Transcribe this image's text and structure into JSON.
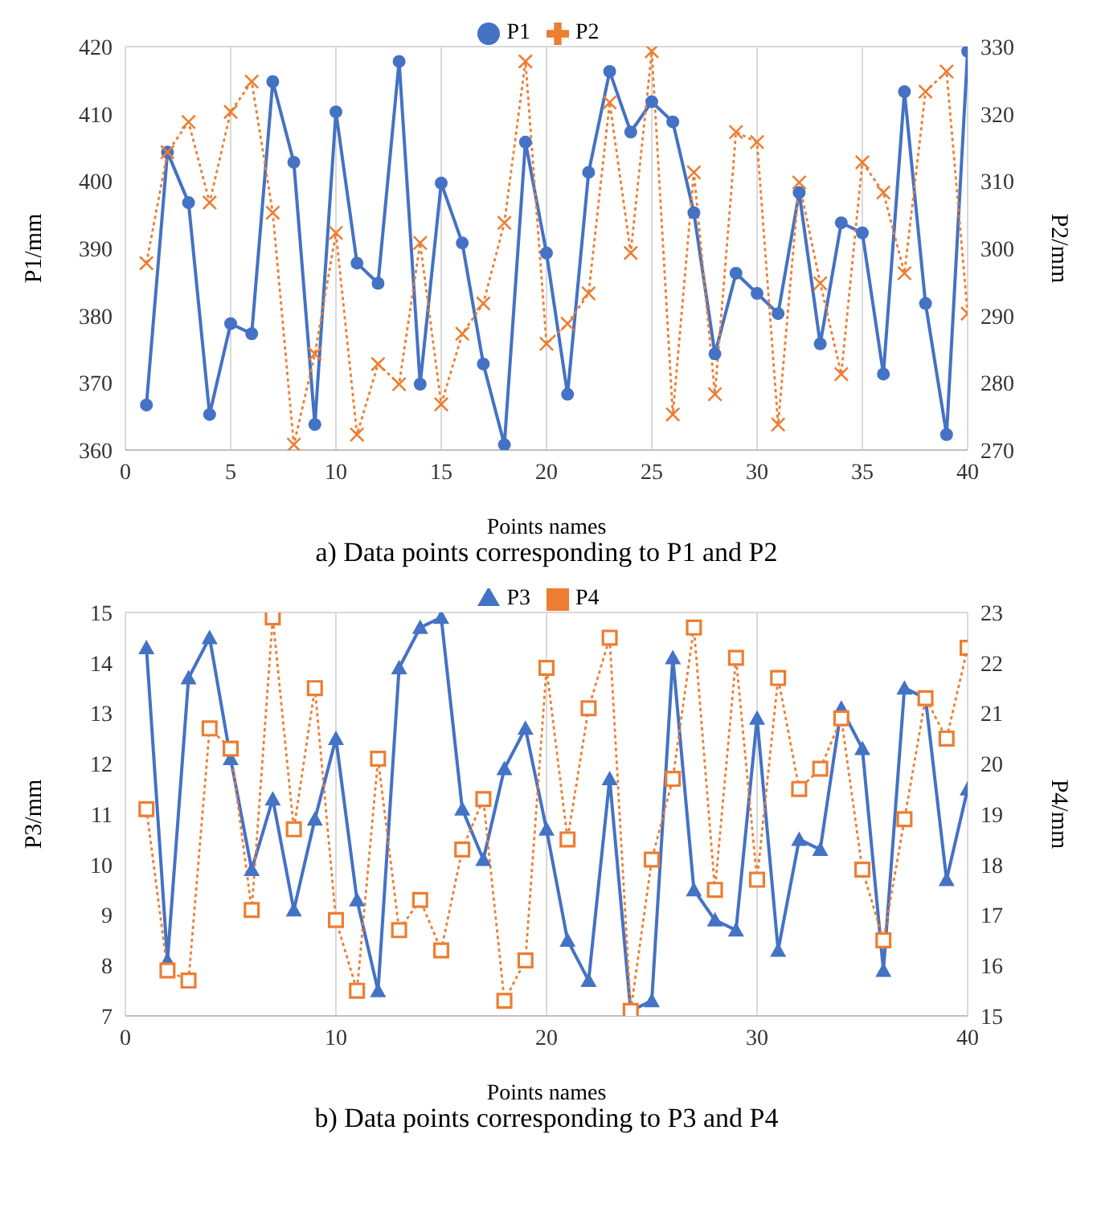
{
  "chart_data": [
    {
      "type": "line",
      "title": "a) Data points corresponding to P1 and P2",
      "xlabel": "Points names",
      "ylabel": "P1/mm",
      "y2label": "P2/mm",
      "x": [
        1,
        2,
        3,
        4,
        5,
        6,
        7,
        8,
        9,
        10,
        11,
        12,
        13,
        14,
        15,
        16,
        17,
        18,
        19,
        20,
        21,
        22,
        23,
        24,
        25,
        26,
        27,
        28,
        29,
        30,
        31,
        32,
        33,
        34,
        35,
        36,
        37,
        38,
        39,
        40
      ],
      "series": [
        {
          "name": "P1",
          "color": "#4472c4",
          "marker": "circle",
          "line_style": "solid",
          "values": [
            366.7,
            404.3,
            396.8,
            365.3,
            378.8,
            377.3,
            414.8,
            402.8,
            363.8,
            410.3,
            387.8,
            384.8,
            417.8,
            369.8,
            399.7,
            390.8,
            372.8,
            360.8,
            405.8,
            389.3,
            368.3,
            401.3,
            416.3,
            407.3,
            411.8,
            408.8,
            395.3,
            374.3,
            386.3,
            383.3,
            380.3,
            398.3,
            375.8,
            393.8,
            392.3,
            371.3,
            413.3,
            381.8,
            362.3,
            419.3
          ]
        },
        {
          "name": "P2",
          "color": "#ed7d31",
          "marker": "cross",
          "line_style": "dotted",
          "axis": "y2",
          "values": [
            297.8,
            314.3,
            318.8,
            306.8,
            320.3,
            324.8,
            305.3,
            270.8,
            284.3,
            302.3,
            272.3,
            282.8,
            279.8,
            300.8,
            276.8,
            287.3,
            291.8,
            303.8,
            327.8,
            285.8,
            288.8,
            293.3,
            321.7,
            299.3,
            329.3,
            275.3,
            311.3,
            278.3,
            317.3,
            315.8,
            273.8,
            309.8,
            294.8,
            281.3,
            312.8,
            308.3,
            296.3,
            323.3,
            326.3,
            290.3
          ]
        }
      ],
      "xlim": [
        0,
        40
      ],
      "xticks": [
        0,
        5,
        10,
        15,
        20,
        25,
        30,
        35,
        40
      ],
      "ylim": [
        360,
        420
      ],
      "yticks": [
        360,
        370,
        380,
        390,
        400,
        410,
        420
      ],
      "y2lim": [
        270,
        330
      ],
      "y2ticks": [
        270,
        280,
        290,
        300,
        310,
        320,
        330
      ],
      "grid": true,
      "legend": "top"
    },
    {
      "type": "line",
      "title": "b) Data points corresponding to P3 and P4",
      "xlabel": "Points names",
      "ylabel": "P3/mm",
      "y2label": "P4/mm",
      "x": [
        1,
        2,
        3,
        4,
        5,
        6,
        7,
        8,
        9,
        10,
        11,
        12,
        13,
        14,
        15,
        16,
        17,
        18,
        19,
        20,
        21,
        22,
        23,
        24,
        25,
        26,
        27,
        28,
        29,
        30,
        31,
        32,
        33,
        34,
        35,
        36,
        37,
        38,
        39,
        40
      ],
      "series": [
        {
          "name": "P3",
          "color": "#4472c4",
          "marker": "triangle",
          "line_style": "solid",
          "values": [
            14.3,
            8.1,
            13.7,
            14.5,
            12.1,
            9.9,
            11.3,
            9.1,
            10.9,
            12.5,
            9.3,
            7.5,
            13.9,
            14.7,
            14.9,
            11.1,
            10.1,
            11.9,
            12.7,
            10.7,
            8.5,
            7.7,
            11.7,
            7.1,
            7.3,
            14.1,
            9.5,
            8.9,
            8.7,
            12.9,
            8.3,
            10.5,
            10.3,
            13.1,
            12.3,
            7.9,
            13.5,
            13.3,
            9.7,
            11.5
          ]
        },
        {
          "name": "P4",
          "color": "#ed7d31",
          "marker": "square",
          "line_style": "dotted",
          "axis": "y2",
          "values": [
            19.1,
            15.9,
            15.7,
            20.7,
            20.3,
            17.1,
            22.9,
            18.7,
            21.5,
            16.9,
            15.5,
            20.1,
            16.7,
            17.3,
            16.3,
            18.3,
            19.3,
            15.3,
            16.1,
            21.9,
            18.5,
            21.1,
            22.5,
            15.1,
            18.1,
            19.7,
            22.7,
            17.5,
            22.1,
            17.7,
            21.7,
            19.5,
            19.9,
            20.9,
            17.9,
            16.5,
            18.9,
            21.3,
            20.5,
            22.3
          ]
        }
      ],
      "xlim": [
        0,
        40
      ],
      "xticks": [
        0,
        10,
        20,
        30,
        40
      ],
      "ylim": [
        7,
        15
      ],
      "yticks": [
        7,
        8,
        9,
        10,
        11,
        12,
        13,
        14,
        15
      ],
      "y2lim": [
        15,
        23
      ],
      "y2ticks": [
        15,
        16,
        17,
        18,
        19,
        20,
        21,
        22,
        23
      ],
      "grid": true,
      "legend": "top"
    }
  ]
}
